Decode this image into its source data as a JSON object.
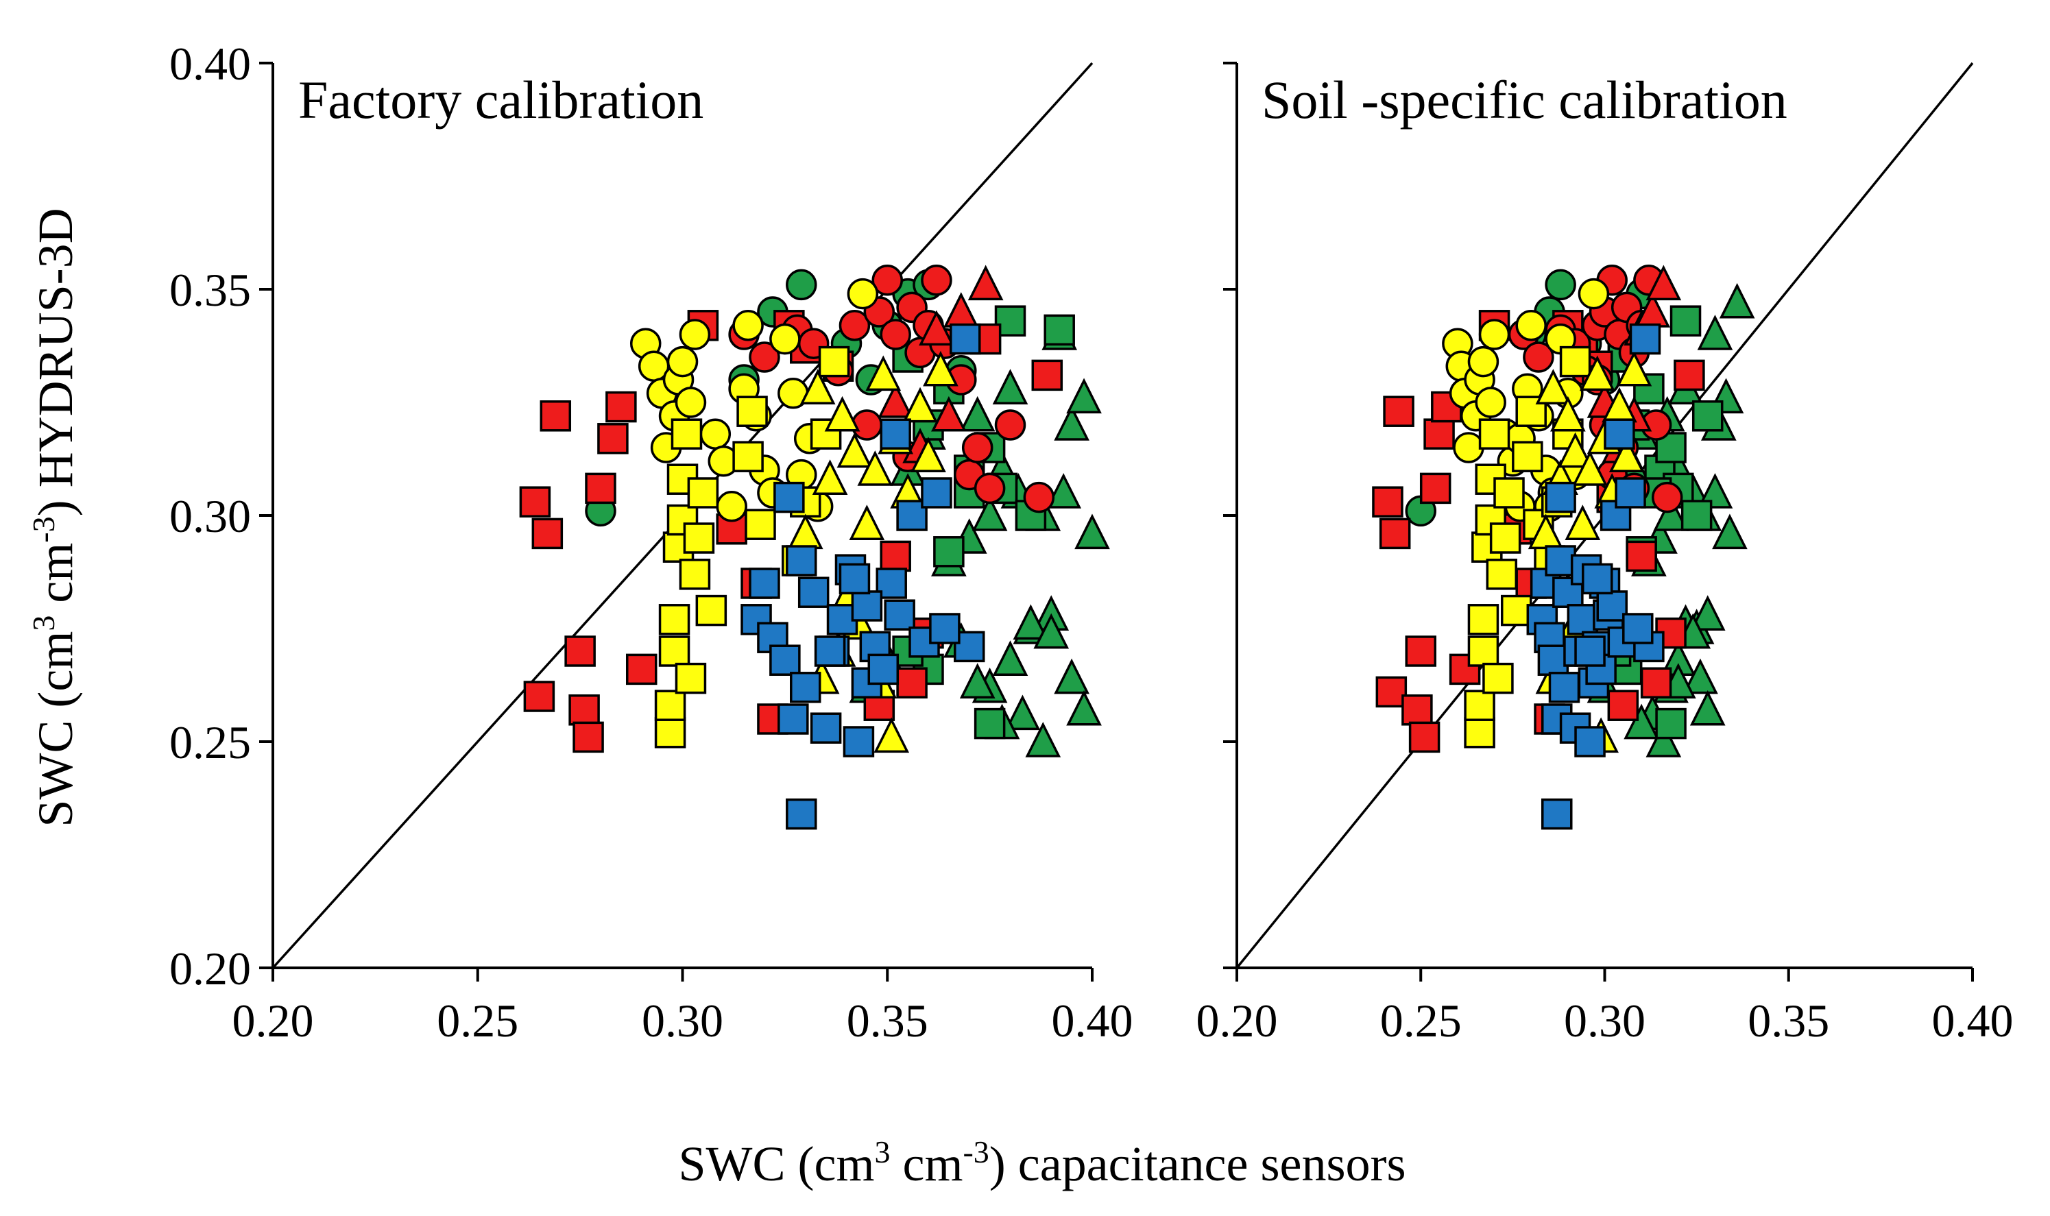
{
  "figure": {
    "x_axis_title": {
      "prefix": "SWC (cm",
      "sup1": "3",
      "mid": " cm",
      "sup2": "-3",
      "suffix": ") capacitance sensors"
    },
    "y_axis_title": {
      "prefix": "SWC (cm",
      "sup1": "3",
      "mid": " cm",
      "sup2": "-3",
      "suffix": ") HYDRUS-3D"
    }
  },
  "colors": {
    "red": "#ee1c1c",
    "yellow": "#ffff0d",
    "green": "#1f9e48",
    "blue": "#1f78c4",
    "outline": "#000000"
  },
  "chart_data": [
    {
      "type": "scatter",
      "title": "Factory calibration",
      "xlim": [
        0.2,
        0.4
      ],
      "ylim": [
        0.2,
        0.4
      ],
      "xticks": [
        "0.20",
        "0.25",
        "0.30",
        "0.35",
        "0.40"
      ],
      "yticks": [
        "0.20",
        "0.25",
        "0.30",
        "0.35",
        "0.40"
      ],
      "reference_line": "1:1",
      "series": [
        {
          "name": "green-circle",
          "color": "green",
          "marker": "circle",
          "x": [
            0.28,
            0.315,
            0.322,
            0.329,
            0.34,
            0.346,
            0.35,
            0.355,
            0.36,
            0.368
          ],
          "y": [
            0.301,
            0.33,
            0.345,
            0.351,
            0.338,
            0.33,
            0.342,
            0.349,
            0.351,
            0.332
          ]
        },
        {
          "name": "green-triangle",
          "color": "green",
          "marker": "triangle",
          "x": [
            0.345,
            0.35,
            0.355,
            0.36,
            0.365,
            0.37,
            0.372,
            0.375,
            0.378,
            0.38,
            0.382,
            0.385,
            0.388,
            0.39,
            0.393,
            0.395,
            0.398,
            0.4,
            0.375,
            0.38,
            0.385,
            0.39,
            0.395,
            0.398,
            0.392,
            0.388,
            0.383,
            0.378,
            0.372,
            0.368
          ],
          "y": [
            0.262,
            0.268,
            0.31,
            0.318,
            0.29,
            0.295,
            0.322,
            0.3,
            0.31,
            0.328,
            0.305,
            0.275,
            0.3,
            0.278,
            0.305,
            0.32,
            0.326,
            0.296,
            0.262,
            0.268,
            0.276,
            0.274,
            0.264,
            0.257,
            0.34,
            0.25,
            0.256,
            0.254,
            0.263,
            0.272
          ]
        },
        {
          "name": "green-square",
          "color": "green",
          "marker": "square",
          "x": [
            0.355,
            0.36,
            0.365,
            0.37,
            0.375,
            0.378,
            0.38,
            0.385,
            0.392,
            0.365,
            0.37,
            0.375,
            0.36,
            0.355
          ],
          "y": [
            0.335,
            0.32,
            0.328,
            0.31,
            0.315,
            0.306,
            0.343,
            0.3,
            0.341,
            0.292,
            0.305,
            0.254,
            0.266,
            0.27
          ]
        },
        {
          "name": "red-square",
          "color": "red",
          "marker": "square",
          "x": [
            0.264,
            0.265,
            0.267,
            0.269,
            0.275,
            0.276,
            0.277,
            0.28,
            0.283,
            0.285,
            0.29,
            0.305,
            0.312,
            0.318,
            0.322,
            0.326,
            0.33,
            0.338,
            0.348,
            0.352,
            0.356,
            0.36,
            0.389,
            0.374
          ],
          "y": [
            0.303,
            0.26,
            0.296,
            0.322,
            0.27,
            0.257,
            0.251,
            0.306,
            0.317,
            0.324,
            0.266,
            0.342,
            0.297,
            0.285,
            0.255,
            0.342,
            0.337,
            0.333,
            0.258,
            0.291,
            0.263,
            0.274,
            0.331,
            0.339
          ]
        },
        {
          "name": "red-circle",
          "color": "red",
          "marker": "circle",
          "x": [
            0.315,
            0.32,
            0.328,
            0.332,
            0.338,
            0.342,
            0.348,
            0.35,
            0.352,
            0.356,
            0.358,
            0.36,
            0.362,
            0.364,
            0.368,
            0.37,
            0.372,
            0.375,
            0.38,
            0.387,
            0.345,
            0.355
          ],
          "y": [
            0.34,
            0.335,
            0.341,
            0.338,
            0.332,
            0.342,
            0.345,
            0.352,
            0.34,
            0.346,
            0.336,
            0.342,
            0.352,
            0.338,
            0.33,
            0.309,
            0.315,
            0.306,
            0.32,
            0.304,
            0.32,
            0.313
          ]
        },
        {
          "name": "red-triangle",
          "color": "red",
          "marker": "triangle",
          "x": [
            0.362,
            0.368,
            0.374,
            0.365,
            0.358,
            0.352
          ],
          "y": [
            0.341,
            0.345,
            0.351,
            0.322,
            0.315,
            0.325
          ]
        },
        {
          "name": "yellow-circle",
          "color": "yellow",
          "marker": "circle",
          "x": [
            0.291,
            0.293,
            0.295,
            0.296,
            0.298,
            0.299,
            0.3,
            0.302,
            0.303,
            0.308,
            0.31,
            0.312,
            0.315,
            0.316,
            0.318,
            0.32,
            0.322,
            0.325,
            0.327,
            0.329,
            0.331,
            0.333,
            0.344
          ],
          "y": [
            0.338,
            0.333,
            0.327,
            0.315,
            0.322,
            0.33,
            0.334,
            0.325,
            0.34,
            0.318,
            0.312,
            0.302,
            0.328,
            0.342,
            0.322,
            0.31,
            0.305,
            0.339,
            0.327,
            0.309,
            0.317,
            0.302,
            0.349
          ]
        },
        {
          "name": "yellow-square",
          "color": "yellow",
          "marker": "square",
          "x": [
            0.297,
            0.297,
            0.298,
            0.298,
            0.299,
            0.3,
            0.3,
            0.301,
            0.302,
            0.303,
            0.304,
            0.305,
            0.307,
            0.316,
            0.317,
            0.319,
            0.328,
            0.33,
            0.335,
            0.337
          ],
          "y": [
            0.252,
            0.258,
            0.27,
            0.277,
            0.293,
            0.299,
            0.308,
            0.318,
            0.264,
            0.287,
            0.295,
            0.305,
            0.279,
            0.313,
            0.323,
            0.298,
            0.29,
            0.303,
            0.318,
            0.334
          ]
        },
        {
          "name": "yellow-triangle",
          "color": "yellow",
          "marker": "triangle",
          "x": [
            0.33,
            0.333,
            0.336,
            0.339,
            0.342,
            0.345,
            0.347,
            0.349,
            0.352,
            0.355,
            0.358,
            0.36,
            0.363,
            0.334,
            0.338,
            0.341,
            0.343,
            0.348,
            0.351
          ],
          "y": [
            0.296,
            0.328,
            0.308,
            0.322,
            0.314,
            0.298,
            0.31,
            0.331,
            0.317,
            0.305,
            0.324,
            0.313,
            0.332,
            0.264,
            0.27,
            0.283,
            0.276,
            0.263,
            0.251
          ]
        },
        {
          "name": "blue-square",
          "color": "blue",
          "marker": "square",
          "x": [
            0.318,
            0.32,
            0.322,
            0.325,
            0.327,
            0.329,
            0.33,
            0.332,
            0.335,
            0.337,
            0.339,
            0.341,
            0.343,
            0.345,
            0.347,
            0.349,
            0.351,
            0.353,
            0.356,
            0.359,
            0.362,
            0.37,
            0.326,
            0.336,
            0.345,
            0.352,
            0.364,
            0.329,
            0.342,
            0.369
          ],
          "y": [
            0.277,
            0.285,
            0.273,
            0.268,
            0.255,
            0.29,
            0.262,
            0.283,
            0.253,
            0.27,
            0.277,
            0.288,
            0.25,
            0.263,
            0.271,
            0.266,
            0.285,
            0.278,
            0.3,
            0.272,
            0.305,
            0.271,
            0.304,
            0.27,
            0.28,
            0.318,
            0.275,
            0.234,
            0.286,
            0.339
          ]
        }
      ]
    },
    {
      "type": "scatter",
      "title": "Soil -specific calibration",
      "xlim": [
        0.2,
        0.4
      ],
      "ylim": [
        0.2,
        0.4
      ],
      "xticks": [
        "0.20",
        "0.25",
        "0.30",
        "0.35",
        "0.40"
      ],
      "yticks": [
        "0.20",
        "0.25",
        "0.30",
        "0.35",
        "0.40"
      ],
      "reference_line": "1:1",
      "series": [
        {
          "name": "green-circle",
          "color": "green",
          "marker": "circle",
          "x": [
            0.25,
            0.28,
            0.285,
            0.288,
            0.295,
            0.3,
            0.305,
            0.31
          ],
          "y": [
            0.301,
            0.34,
            0.345,
            0.351,
            0.338,
            0.33,
            0.342,
            0.349
          ]
        },
        {
          "name": "green-triangle",
          "color": "green",
          "marker": "triangle",
          "x": [
            0.3,
            0.305,
            0.308,
            0.31,
            0.312,
            0.315,
            0.317,
            0.318,
            0.32,
            0.322,
            0.324,
            0.325,
            0.327,
            0.328,
            0.33,
            0.331,
            0.333,
            0.334,
            0.336,
            0.318,
            0.32,
            0.322,
            0.324,
            0.326,
            0.328,
            0.33,
            0.316,
            0.313,
            0.31,
            0.32
          ],
          "y": [
            0.262,
            0.268,
            0.31,
            0.318,
            0.29,
            0.295,
            0.322,
            0.3,
            0.31,
            0.328,
            0.305,
            0.275,
            0.3,
            0.278,
            0.305,
            0.32,
            0.326,
            0.296,
            0.347,
            0.262,
            0.268,
            0.276,
            0.274,
            0.264,
            0.257,
            0.34,
            0.25,
            0.256,
            0.254,
            0.263
          ]
        },
        {
          "name": "green-square",
          "color": "green",
          "marker": "square",
          "x": [
            0.305,
            0.308,
            0.312,
            0.315,
            0.318,
            0.32,
            0.322,
            0.325,
            0.328,
            0.31,
            0.314,
            0.318,
            0.306,
            0.303
          ],
          "y": [
            0.335,
            0.32,
            0.328,
            0.31,
            0.315,
            0.306,
            0.343,
            0.3,
            0.322,
            0.292,
            0.305,
            0.254,
            0.266,
            0.27
          ]
        },
        {
          "name": "red-square",
          "color": "red",
          "marker": "square",
          "x": [
            0.241,
            0.242,
            0.243,
            0.244,
            0.25,
            0.249,
            0.251,
            0.254,
            0.255,
            0.257,
            0.262,
            0.27,
            0.276,
            0.28,
            0.285,
            0.29,
            0.294,
            0.298,
            0.305,
            0.31,
            0.314,
            0.318,
            0.323,
            0.302
          ],
          "y": [
            0.303,
            0.261,
            0.296,
            0.323,
            0.27,
            0.257,
            0.251,
            0.306,
            0.318,
            0.324,
            0.266,
            0.342,
            0.297,
            0.285,
            0.255,
            0.342,
            0.337,
            0.333,
            0.258,
            0.291,
            0.263,
            0.274,
            0.331,
            0.304
          ]
        },
        {
          "name": "red-circle",
          "color": "red",
          "marker": "circle",
          "x": [
            0.278,
            0.282,
            0.288,
            0.292,
            0.295,
            0.298,
            0.3,
            0.302,
            0.304,
            0.306,
            0.308,
            0.31,
            0.312,
            0.298,
            0.302,
            0.305,
            0.308,
            0.314,
            0.317,
            0.3
          ],
          "y": [
            0.34,
            0.335,
            0.341,
            0.338,
            0.332,
            0.342,
            0.345,
            0.352,
            0.34,
            0.346,
            0.336,
            0.342,
            0.352,
            0.33,
            0.309,
            0.315,
            0.306,
            0.32,
            0.304,
            0.32
          ]
        },
        {
          "name": "red-triangle",
          "color": "red",
          "marker": "triangle",
          "x": [
            0.31,
            0.313,
            0.316,
            0.308,
            0.304,
            0.3
          ],
          "y": [
            0.341,
            0.345,
            0.351,
            0.322,
            0.315,
            0.325
          ]
        },
        {
          "name": "yellow-circle",
          "color": "yellow",
          "marker": "circle",
          "x": [
            0.26,
            0.261,
            0.262,
            0.263,
            0.265,
            0.266,
            0.267,
            0.269,
            0.27,
            0.273,
            0.275,
            0.277,
            0.279,
            0.28,
            0.282,
            0.284,
            0.286,
            0.288,
            0.29,
            0.292,
            0.277,
            0.285,
            0.297
          ],
          "y": [
            0.338,
            0.333,
            0.327,
            0.315,
            0.322,
            0.33,
            0.334,
            0.325,
            0.34,
            0.318,
            0.312,
            0.302,
            0.328,
            0.342,
            0.322,
            0.31,
            0.305,
            0.339,
            0.327,
            0.309,
            0.317,
            0.302,
            0.349
          ]
        },
        {
          "name": "yellow-square",
          "color": "yellow",
          "marker": "square",
          "x": [
            0.266,
            0.266,
            0.267,
            0.267,
            0.268,
            0.269,
            0.269,
            0.27,
            0.271,
            0.272,
            0.273,
            0.274,
            0.276,
            0.279,
            0.28,
            0.282,
            0.285,
            0.287,
            0.29,
            0.292
          ],
          "y": [
            0.252,
            0.258,
            0.27,
            0.277,
            0.293,
            0.299,
            0.308,
            0.318,
            0.264,
            0.287,
            0.295,
            0.305,
            0.279,
            0.313,
            0.323,
            0.298,
            0.29,
            0.303,
            0.318,
            0.334
          ]
        },
        {
          "name": "yellow-triangle",
          "color": "yellow",
          "marker": "triangle",
          "x": [
            0.284,
            0.286,
            0.288,
            0.29,
            0.292,
            0.294,
            0.296,
            0.298,
            0.3,
            0.302,
            0.304,
            0.306,
            0.308,
            0.286,
            0.288,
            0.29,
            0.292,
            0.296,
            0.299
          ],
          "y": [
            0.296,
            0.328,
            0.308,
            0.322,
            0.314,
            0.298,
            0.31,
            0.331,
            0.317,
            0.305,
            0.324,
            0.313,
            0.332,
            0.264,
            0.27,
            0.283,
            0.276,
            0.263,
            0.251
          ]
        },
        {
          "name": "blue-square",
          "color": "blue",
          "marker": "square",
          "x": [
            0.283,
            0.284,
            0.285,
            0.286,
            0.287,
            0.288,
            0.289,
            0.29,
            0.292,
            0.293,
            0.294,
            0.295,
            0.296,
            0.297,
            0.298,
            0.299,
            0.3,
            0.301,
            0.303,
            0.305,
            0.307,
            0.312,
            0.288,
            0.296,
            0.302,
            0.304,
            0.309,
            0.287,
            0.298,
            0.311
          ],
          "y": [
            0.277,
            0.285,
            0.273,
            0.268,
            0.255,
            0.29,
            0.262,
            0.283,
            0.253,
            0.27,
            0.277,
            0.288,
            0.25,
            0.263,
            0.271,
            0.266,
            0.285,
            0.278,
            0.3,
            0.272,
            0.305,
            0.271,
            0.304,
            0.27,
            0.28,
            0.318,
            0.275,
            0.234,
            0.286,
            0.339
          ]
        }
      ]
    }
  ]
}
